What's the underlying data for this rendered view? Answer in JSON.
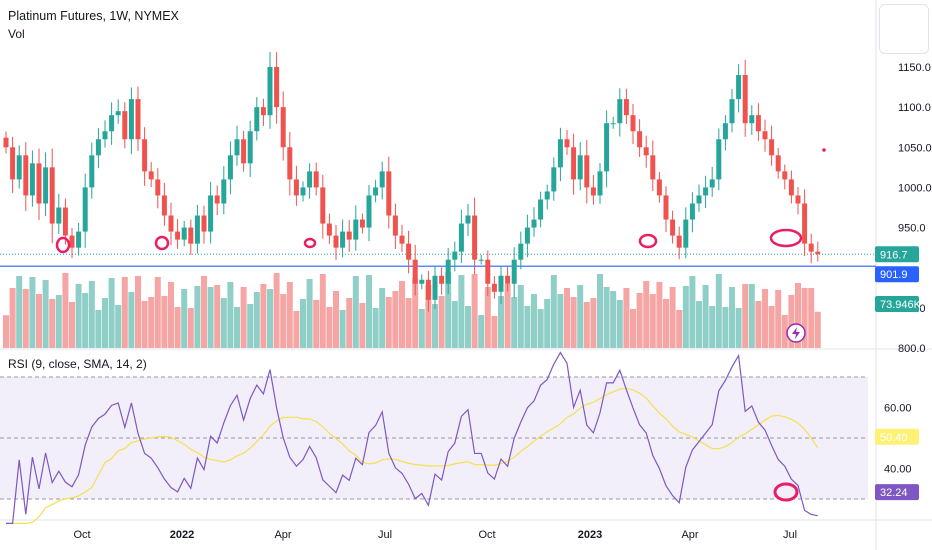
{
  "header": {
    "title": "Platinum Futures, 1W, NYMEX",
    "vol_label": "Vol",
    "rsi_label": "RSI (9, close, SMA, 14, 2)"
  },
  "colors": {
    "up": "#26a69a",
    "down": "#ef5350",
    "vol_up": "#8fcfc8",
    "vol_down": "#f5a6a4",
    "support_line": "#2962ff",
    "rsi_line": "#7e57c2",
    "rsi_ma": "#f5e050",
    "rsi_band": "#f3effa",
    "annotation": "#e91e63",
    "last_price_badge": "#26a69a",
    "support_badge": "#2962ff",
    "vol_badge": "#26a69a",
    "rsi_ma_badge": "#fff176",
    "rsi_badge": "#7e57c2"
  },
  "chart_data": [
    {
      "type": "candlestick",
      "title": "Platinum Futures, 1W, NYMEX",
      "x_ticks": [
        "Oct",
        "2022",
        "Apr",
        "Jul",
        "Oct",
        "2023",
        "Apr",
        "Jul"
      ],
      "y_ticks": [
        800.0,
        850.0,
        900.0,
        950.0,
        1000.0,
        1050.0,
        1100.0,
        1150.0
      ],
      "y_tick_labels": [
        "800.0",
        "850.0",
        "950.0",
        "1000.0",
        "1050.0",
        "1100.0",
        "1150.0"
      ],
      "ylim": [
        778,
        1200
      ],
      "support_level": 901.9,
      "support_label": "901.9",
      "last_price": 916.7,
      "last_price_label": "916.7",
      "closes": [
        1050,
        1010,
        1040,
        990,
        1030,
        980,
        1025,
        955,
        975,
        940,
        925,
        945,
        1000,
        1040,
        1060,
        1070,
        1090,
        1095,
        1060,
        1110,
        1060,
        1020,
        1010,
        990,
        965,
        945,
        935,
        950,
        930,
        965,
        945,
        990,
        980,
        1010,
        1040,
        1060,
        1030,
        1070,
        1100,
        1090,
        1150,
        1100,
        1050,
        1010,
        990,
        1000,
        1020,
        1000,
        955,
        940,
        925,
        945,
        935,
        960,
        950,
        990,
        1000,
        1020,
        965,
        940,
        930,
        910,
        880,
        885,
        860,
        890,
        880,
        910,
        920,
        955,
        965,
        910,
        910,
        880,
        870,
        890,
        880,
        910,
        930,
        950,
        960,
        985,
        995,
        1025,
        1060,
        1050,
        1010,
        1040,
        1000,
        990,
        1020,
        1080,
        1080,
        1110,
        1090,
        1070,
        1050,
        1040,
        1010,
        990,
        960,
        940,
        925,
        960,
        980,
        990,
        1000,
        1010,
        1060,
        1080,
        1110,
        1140,
        1080,
        1090,
        1070,
        1060,
        1040,
        1020,
        1010,
        990,
        980,
        930,
        920,
        917
      ]
    },
    {
      "type": "bar",
      "title": "Vol",
      "last_value_label": "73.946K"
    },
    {
      "type": "line",
      "title": "RSI (9, close, SMA, 14, 2)",
      "ylim": [
        20,
        80
      ],
      "y_ticks": [
        40,
        60
      ],
      "y_tick_labels": [
        "40.00",
        "60.00"
      ],
      "bands": [
        30,
        50,
        70
      ],
      "last_rsi": 32.24,
      "last_rsi_label": "32.24",
      "last_ma": 50.4,
      "last_ma_label": "50.40"
    }
  ]
}
